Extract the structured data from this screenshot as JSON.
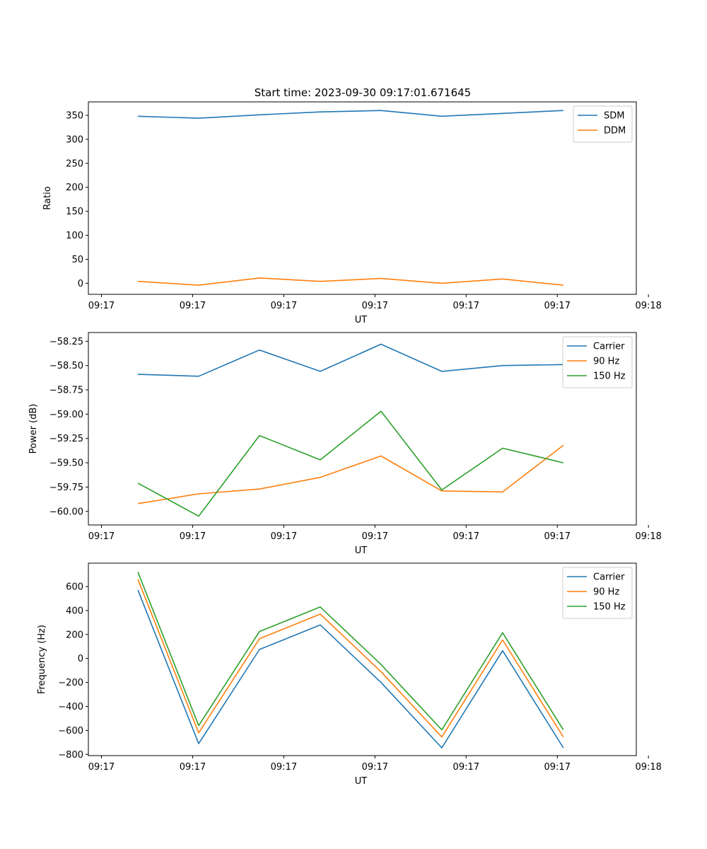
{
  "figure_title": "Start time: 2023-09-30 09:17:01.671645",
  "chart_data": [
    {
      "type": "line",
      "title": "Start time: 2023-09-30 09:17:01.671645",
      "xlabel": "UT",
      "ylabel": "Ratio",
      "x": [
        1,
        2,
        3,
        4,
        5,
        6,
        7,
        8
      ],
      "xlim": [
        0.185,
        9.2
      ],
      "x_ticks": [
        0.4,
        1.9,
        3.4,
        4.9,
        6.4,
        7.9,
        9.4
      ],
      "x_tick_labels": [
        "09:17",
        "09:17",
        "09:17",
        "09:17",
        "09:17",
        "09:17",
        "09:18"
      ],
      "ylim": [
        -23,
        378
      ],
      "y_ticks": [
        0,
        50,
        100,
        150,
        200,
        250,
        300,
        350
      ],
      "y_tick_labels": [
        "0",
        "50",
        "100",
        "150",
        "200",
        "250",
        "300",
        "350"
      ],
      "legend_position": "top-right",
      "series": [
        {
          "name": "SDM",
          "color": "#1f77b4",
          "values": [
            348,
            344,
            351,
            357,
            360,
            348,
            354,
            360
          ]
        },
        {
          "name": "DDM",
          "color": "#ff7f0e",
          "values": [
            4,
            -4,
            11,
            4,
            10,
            0,
            9,
            -4
          ]
        }
      ]
    },
    {
      "type": "line",
      "title": "",
      "xlabel": "UT",
      "ylabel": "Power (dB)",
      "x": [
        1,
        2,
        3,
        4,
        5,
        6,
        7,
        8
      ],
      "xlim": [
        0.185,
        9.2
      ],
      "x_ticks": [
        0.4,
        1.9,
        3.4,
        4.9,
        6.4,
        7.9,
        9.4
      ],
      "x_tick_labels": [
        "09:17",
        "09:17",
        "09:17",
        "09:17",
        "09:17",
        "09:17",
        "09:18"
      ],
      "ylim": [
        -60.14,
        -58.16
      ],
      "y_ticks": [
        -60.0,
        -59.75,
        -59.5,
        -59.25,
        -59.0,
        -58.75,
        -58.5,
        -58.25
      ],
      "y_tick_labels": [
        "−60.00",
        "−59.75",
        "−59.50",
        "−59.25",
        "−59.00",
        "−58.75",
        "−58.50",
        "−58.25"
      ],
      "legend_position": "top-right",
      "series": [
        {
          "name": "Carrier",
          "color": "#1f77b4",
          "values": [
            -58.59,
            -58.61,
            -58.34,
            -58.56,
            -58.28,
            -58.56,
            -58.5,
            -58.49
          ]
        },
        {
          "name": "90 Hz",
          "color": "#ff7f0e",
          "values": [
            -59.92,
            -59.82,
            -59.77,
            -59.65,
            -59.43,
            -59.79,
            -59.8,
            -59.32
          ]
        },
        {
          "name": "150 Hz",
          "color": "#2ca02c",
          "values": [
            -59.71,
            -60.05,
            -59.22,
            -59.47,
            -58.97,
            -59.78,
            -59.35,
            -59.5
          ]
        }
      ]
    },
    {
      "type": "line",
      "title": "",
      "xlabel": "UT",
      "ylabel": "Frequency (Hz)",
      "x": [
        1,
        2,
        3,
        4,
        5,
        6,
        7,
        8
      ],
      "xlim": [
        0.185,
        9.2
      ],
      "x_ticks": [
        0.4,
        1.9,
        3.4,
        4.9,
        6.4,
        7.9,
        9.4
      ],
      "x_tick_labels": [
        "09:17",
        "09:17",
        "09:17",
        "09:17",
        "09:17",
        "09:17",
        "09:18"
      ],
      "ylim": [
        -810,
        795
      ],
      "y_ticks": [
        -800,
        -600,
        -400,
        -200,
        0,
        200,
        400,
        600
      ],
      "y_tick_labels": [
        "−800",
        "−600",
        "−400",
        "−200",
        "0",
        "200",
        "400",
        "600"
      ],
      "legend_position": "top-right",
      "series": [
        {
          "name": "Carrier",
          "color": "#1f77b4",
          "values": [
            570,
            -710,
            75,
            280,
            -200,
            -745,
            65,
            -745
          ]
        },
        {
          "name": "90 Hz",
          "color": "#ff7f0e",
          "values": [
            660,
            -620,
            165,
            370,
            -110,
            -655,
            155,
            -655
          ]
        },
        {
          "name": "150 Hz",
          "color": "#2ca02c",
          "values": [
            720,
            -560,
            225,
            430,
            -50,
            -595,
            215,
            -595
          ]
        }
      ]
    }
  ]
}
